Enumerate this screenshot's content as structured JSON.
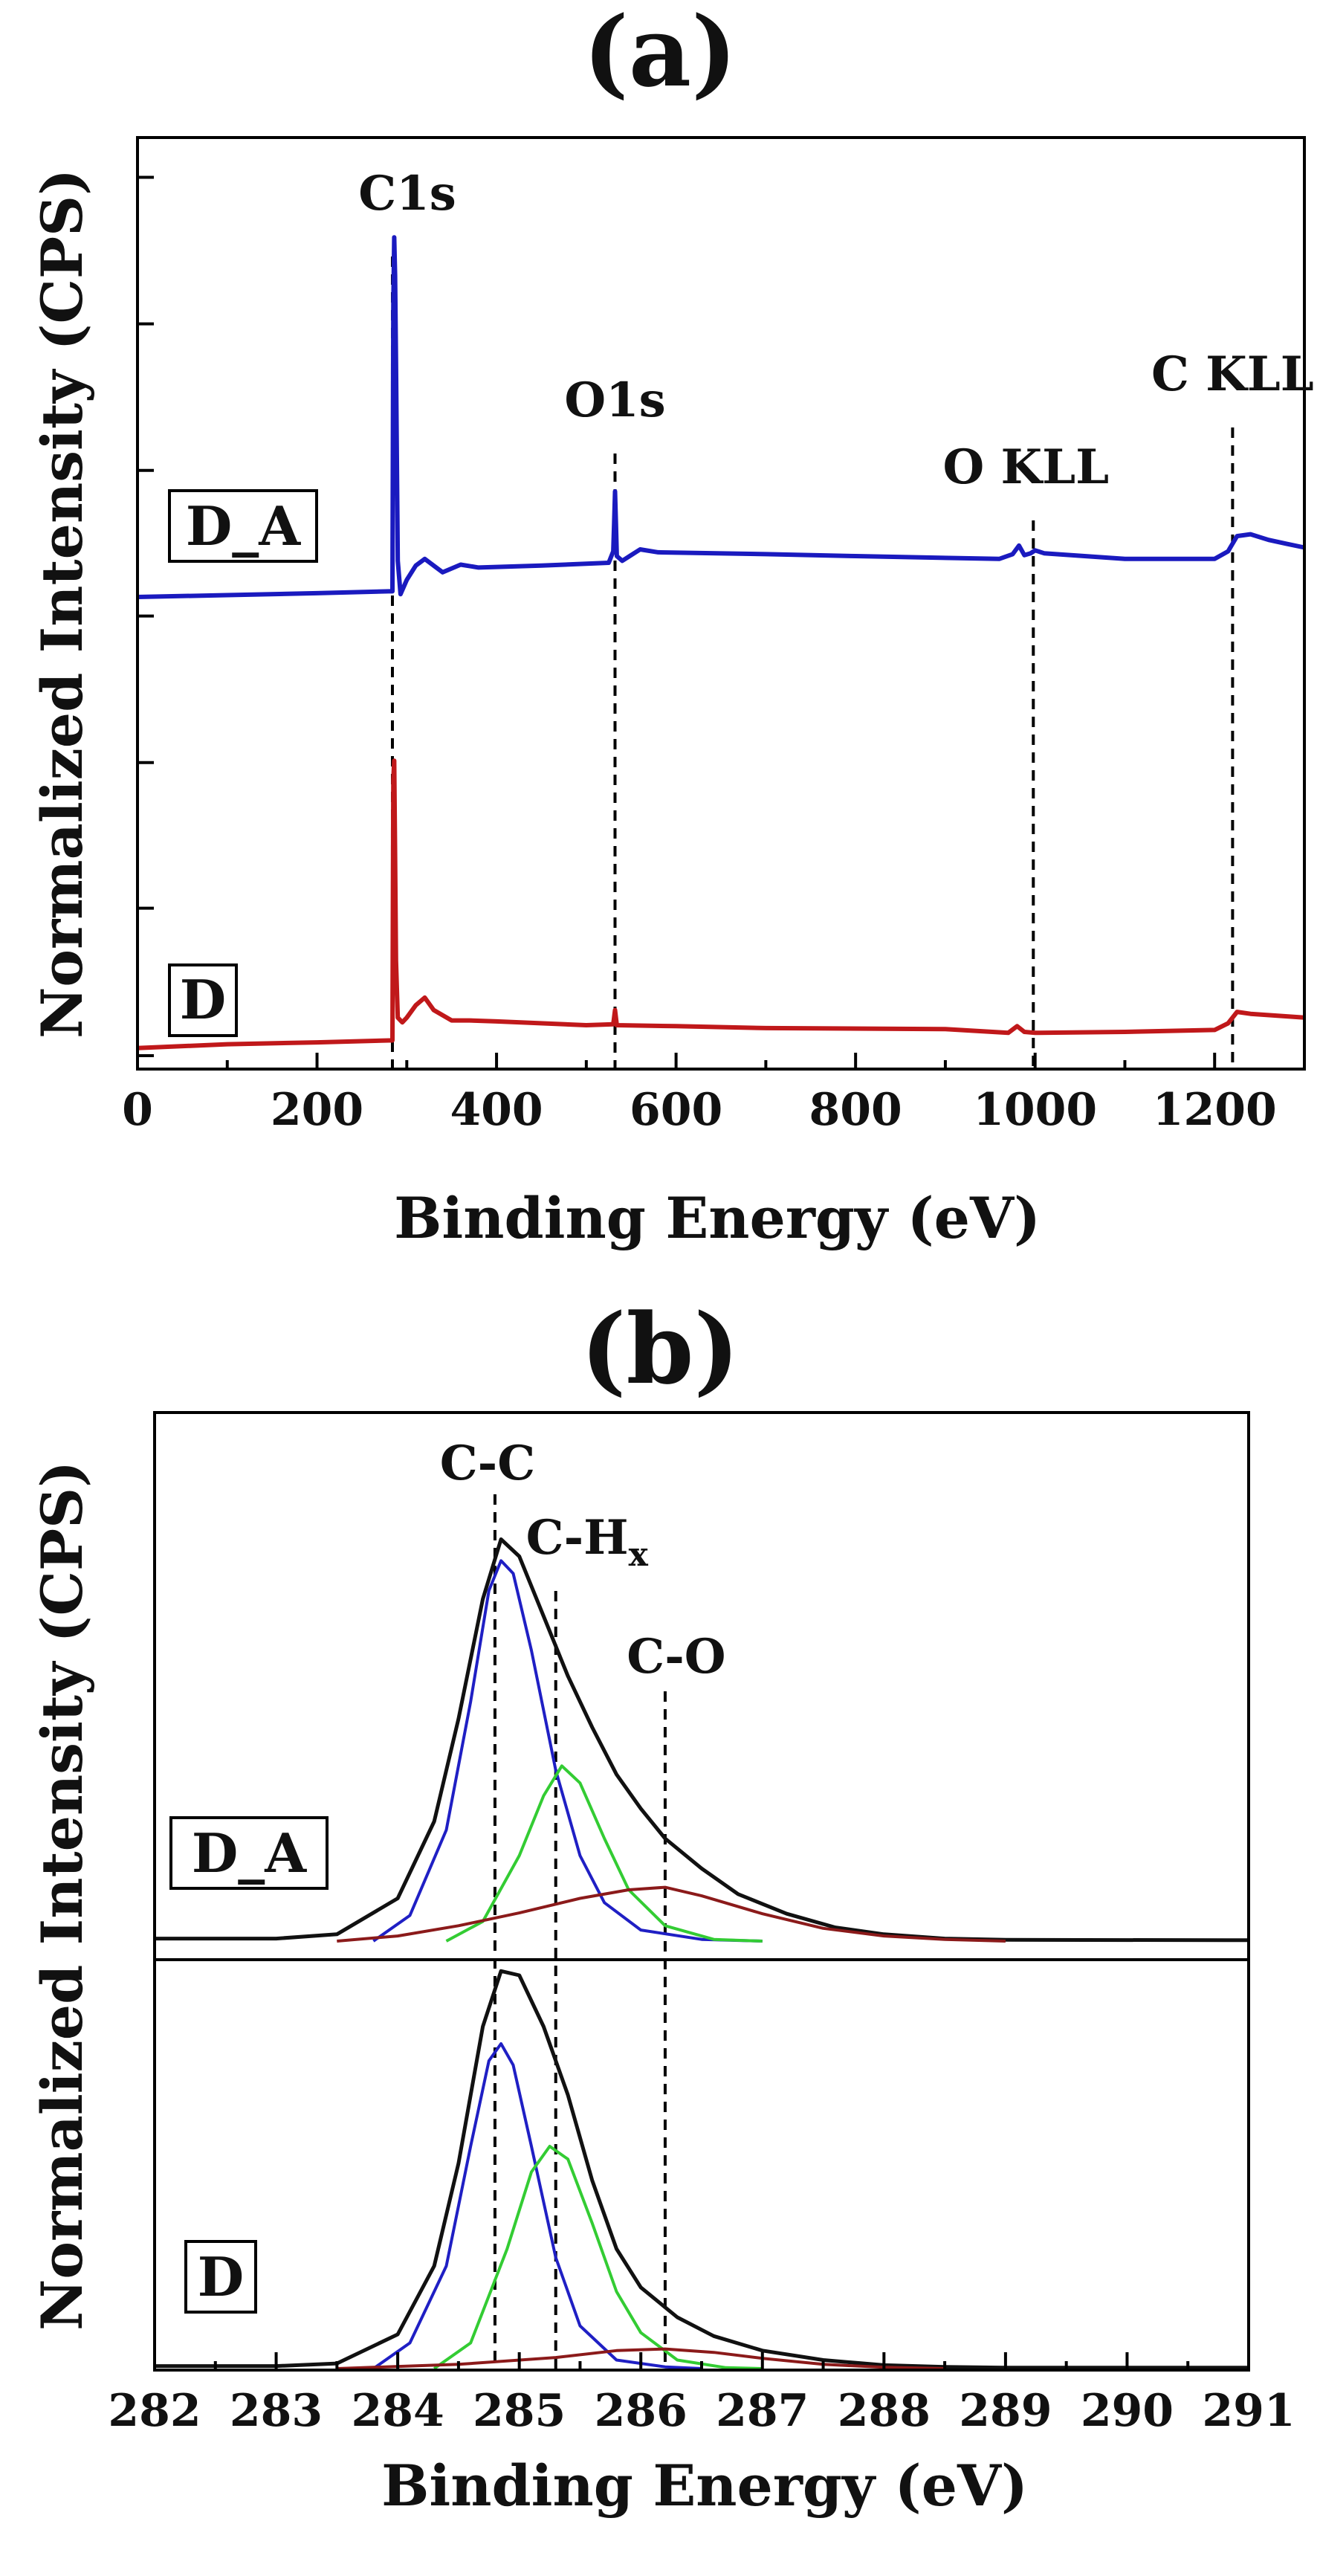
{
  "chart_data": [
    {
      "panel_label": "(a)",
      "type": "line",
      "title": "(a)",
      "xlabel": "Binding Energy (eV)",
      "ylabel": "Normalized Intensity (CPS)",
      "xlim": [
        0,
        1300
      ],
      "ylim": [
        0,
        100
      ],
      "x_ticks": [
        0,
        200,
        400,
        600,
        800,
        1000,
        1200
      ],
      "x_tick_labels": [
        "0",
        "200",
        "400",
        "600",
        "800",
        "1000",
        "1200"
      ],
      "y_ticks": [
        0,
        15.5,
        30.8,
        46.2,
        61.5,
        76.9,
        92.3
      ],
      "y_tick_labels_shown": false,
      "peak_markers": [
        {
          "label": "C1s",
          "x": 284
        },
        {
          "label": "O1s",
          "x": 532
        },
        {
          "label": "O KLL",
          "x": 998
        },
        {
          "label": "C KLL",
          "x": 1220
        }
      ],
      "series": [
        {
          "name": "D_A",
          "color": "#1a1abf",
          "points": [
            [
              0,
              48.2
            ],
            [
              100,
              48.4
            ],
            [
              200,
              48.6
            ],
            [
              280,
              48.8
            ],
            [
              284,
              48.8
            ],
            [
              285,
              79
            ],
            [
              286,
              86
            ],
            [
              287,
              82
            ],
            [
              288,
              73
            ],
            [
              290,
              52
            ],
            [
              293,
              48.5
            ],
            [
              300,
              50
            ],
            [
              310,
              51.5
            ],
            [
              320,
              52.2
            ],
            [
              330,
              51.5
            ],
            [
              340,
              50.8
            ],
            [
              360,
              51.6
            ],
            [
              380,
              51.3
            ],
            [
              450,
              51.5
            ],
            [
              525,
              51.8
            ],
            [
              530,
              53
            ],
            [
              531,
              56
            ],
            [
              532,
              59.3
            ],
            [
              533,
              56
            ],
            [
              534,
              52.5
            ],
            [
              540,
              52
            ],
            [
              550,
              52.6
            ],
            [
              560,
              53.2
            ],
            [
              580,
              52.9
            ],
            [
              700,
              52.7
            ],
            [
              800,
              52.5
            ],
            [
              960,
              52.2
            ],
            [
              975,
              52.7
            ],
            [
              982,
              53.6
            ],
            [
              988,
              52.6
            ],
            [
              995,
              52.8
            ],
            [
              1000,
              53.1
            ],
            [
              1010,
              52.8
            ],
            [
              1100,
              52.2
            ],
            [
              1200,
              52.2
            ],
            [
              1215,
              53
            ],
            [
              1225,
              54.6
            ],
            [
              1240,
              54.8
            ],
            [
              1260,
              54.2
            ],
            [
              1280,
              53.8
            ],
            [
              1300,
              53.4
            ]
          ]
        },
        {
          "name": "D",
          "color": "#c0181a",
          "points": [
            [
              0,
              0.8
            ],
            [
              100,
              1.2
            ],
            [
              200,
              1.4
            ],
            [
              280,
              1.6
            ],
            [
              284,
              1.6
            ],
            [
              285,
              29
            ],
            [
              286,
              31
            ],
            [
              287,
              21
            ],
            [
              288,
              10
            ],
            [
              290,
              4
            ],
            [
              295,
              3.5
            ],
            [
              300,
              4
            ],
            [
              310,
              5.3
            ],
            [
              320,
              6.1
            ],
            [
              330,
              4.8
            ],
            [
              350,
              3.7
            ],
            [
              370,
              3.7
            ],
            [
              400,
              3.6
            ],
            [
              500,
              3.2
            ],
            [
              530,
              3.3
            ],
            [
              532,
              4.8
            ],
            [
              534,
              3.2
            ],
            [
              600,
              3.1
            ],
            [
              700,
              2.9
            ],
            [
              900,
              2.8
            ],
            [
              970,
              2.4
            ],
            [
              980,
              3.1
            ],
            [
              988,
              2.5
            ],
            [
              1000,
              2.4
            ],
            [
              1100,
              2.5
            ],
            [
              1200,
              2.7
            ],
            [
              1215,
              3.4
            ],
            [
              1225,
              4.6
            ],
            [
              1240,
              4.4
            ],
            [
              1270,
              4.2
            ],
            [
              1300,
              4
            ]
          ]
        }
      ],
      "sample_labels": [
        "D_A",
        "D"
      ]
    },
    {
      "panel_label": "(b)",
      "type": "line",
      "title": "(b)",
      "xlabel": "Binding Energy (eV)",
      "ylabel": "Normalized Intensity (CPS)",
      "xlim": [
        282,
        291
      ],
      "ylim": [
        0,
        100
      ],
      "x_ticks": [
        282,
        283,
        284,
        285,
        286,
        287,
        288,
        289,
        290,
        291
      ],
      "x_tick_labels": [
        "282",
        "283",
        "284",
        "285",
        "286",
        "287",
        "288",
        "289",
        "290",
        "291"
      ],
      "y_tick_labels_shown": false,
      "peak_markers": [
        {
          "label": "C-C",
          "x": 284.8
        },
        {
          "label": "C-H",
          "subscript": "x",
          "x": 285.3
        },
        {
          "label": "C-O",
          "x": 286.2
        }
      ],
      "stacks": [
        {
          "name": "D_A",
          "baseline": 50,
          "scale": 50,
          "components": [
            {
              "name": "envelope",
              "color": "#111111",
              "stroke_width": 5,
              "points": [
                [
                  282,
                  0.3
                ],
                [
                  283,
                  0.3
                ],
                [
                  283.5,
                  0.8
                ],
                [
                  284,
                  5
                ],
                [
                  284.3,
                  14
                ],
                [
                  284.5,
                  26
                ],
                [
                  284.7,
                  40
                ],
                [
                  284.85,
                  47
                ],
                [
                  285,
                  45
                ],
                [
                  285.2,
                  38
                ],
                [
                  285.4,
                  31
                ],
                [
                  285.6,
                  25
                ],
                [
                  285.8,
                  19.5
                ],
                [
                  286,
                  15.5
                ],
                [
                  286.2,
                  12
                ],
                [
                  286.5,
                  8.5
                ],
                [
                  286.8,
                  5.5
                ],
                [
                  287.2,
                  3.2
                ],
                [
                  287.6,
                  1.6
                ],
                [
                  288,
                  0.8
                ],
                [
                  288.5,
                  0.3
                ],
                [
                  289,
                  0.15
                ],
                [
                  291,
                  0.1
                ]
              ]
            },
            {
              "name": "C-C fit",
              "color": "#1f1fc4",
              "stroke_width": 4,
              "points": [
                [
                  283.8,
                  0
                ],
                [
                  284.1,
                  3
                ],
                [
                  284.4,
                  13
                ],
                [
                  284.6,
                  28
                ],
                [
                  284.75,
                  41
                ],
                [
                  284.85,
                  44.5
                ],
                [
                  284.95,
                  43
                ],
                [
                  285.1,
                  34
                ],
                [
                  285.3,
                  20
                ],
                [
                  285.5,
                  10
                ],
                [
                  285.7,
                  4.5
                ],
                [
                  286,
                  1.3
                ],
                [
                  286.5,
                  0.2
                ],
                [
                  287,
                  0
                ]
              ]
            },
            {
              "name": "C-H_x fit",
              "color": "#33cc33",
              "stroke_width": 4,
              "points": [
                [
                  284.4,
                  0
                ],
                [
                  284.7,
                  2.3
                ],
                [
                  285,
                  10
                ],
                [
                  285.2,
                  17
                ],
                [
                  285.35,
                  20.5
                ],
                [
                  285.5,
                  18.5
                ],
                [
                  285.7,
                  12
                ],
                [
                  285.9,
                  6
                ],
                [
                  286.2,
                  1.8
                ],
                [
                  286.6,
                  0.2
                ],
                [
                  287,
                  0
                ]
              ]
            },
            {
              "name": "C-O fit",
              "color": "#8b1a1a",
              "stroke_width": 4,
              "points": [
                [
                  283.5,
                  0
                ],
                [
                  284,
                  0.6
                ],
                [
                  284.5,
                  1.8
                ],
                [
                  285,
                  3.3
                ],
                [
                  285.5,
                  5
                ],
                [
                  285.9,
                  6
                ],
                [
                  286.2,
                  6.3
                ],
                [
                  286.5,
                  5.3
                ],
                [
                  287,
                  3.2
                ],
                [
                  287.5,
                  1.5
                ],
                [
                  288,
                  0.6
                ],
                [
                  288.5,
                  0.2
                ],
                [
                  289,
                  0
                ]
              ]
            }
          ]
        },
        {
          "name": "D",
          "baseline": 0,
          "scale": 50,
          "components": [
            {
              "name": "envelope",
              "color": "#111111",
              "stroke_width": 5,
              "points": [
                [
                  282,
                  0.3
                ],
                [
                  283,
                  0.3
                ],
                [
                  283.5,
                  0.6
                ],
                [
                  284,
                  4
                ],
                [
                  284.3,
                  12
                ],
                [
                  284.5,
                  24
                ],
                [
                  284.7,
                  40
                ],
                [
                  284.85,
                  46.5
                ],
                [
                  285,
                  46
                ],
                [
                  285.2,
                  40
                ],
                [
                  285.4,
                  32
                ],
                [
                  285.6,
                  22
                ],
                [
                  285.8,
                  14
                ],
                [
                  286,
                  9.5
                ],
                [
                  286.3,
                  6
                ],
                [
                  286.6,
                  3.8
                ],
                [
                  287,
                  2.1
                ],
                [
                  287.5,
                  1
                ],
                [
                  288,
                  0.4
                ],
                [
                  288.5,
                  0.2
                ],
                [
                  289,
                  0.1
                ],
                [
                  291,
                  0.1
                ]
              ]
            },
            {
              "name": "C-C fit",
              "color": "#1f1fc4",
              "stroke_width": 4,
              "points": [
                [
                  283.8,
                  0
                ],
                [
                  284.1,
                  3
                ],
                [
                  284.4,
                  12
                ],
                [
                  284.6,
                  26
                ],
                [
                  284.75,
                  36
                ],
                [
                  284.85,
                  38
                ],
                [
                  284.95,
                  35.5
                ],
                [
                  285.1,
                  26
                ],
                [
                  285.3,
                  13
                ],
                [
                  285.5,
                  5
                ],
                [
                  285.8,
                  1
                ],
                [
                  286.2,
                  0.2
                ],
                [
                  286.5,
                  0
                ]
              ]
            },
            {
              "name": "C-H_x fit",
              "color": "#33cc33",
              "stroke_width": 4,
              "points": [
                [
                  284.3,
                  0
                ],
                [
                  284.6,
                  3
                ],
                [
                  284.9,
                  14
                ],
                [
                  285.1,
                  23
                ],
                [
                  285.25,
                  26
                ],
                [
                  285.4,
                  24.5
                ],
                [
                  285.6,
                  17
                ],
                [
                  285.8,
                  9
                ],
                [
                  286,
                  4.2
                ],
                [
                  286.3,
                  1
                ],
                [
                  286.7,
                  0.1
                ],
                [
                  287,
                  0
                ]
              ]
            },
            {
              "name": "C-O fit",
              "color": "#8b1a1a",
              "stroke_width": 4,
              "points": [
                [
                  283.5,
                  0
                ],
                [
                  284.5,
                  0.5
                ],
                [
                  285.3,
                  1.3
                ],
                [
                  285.8,
                  2.1
                ],
                [
                  286.2,
                  2.3
                ],
                [
                  286.6,
                  1.9
                ],
                [
                  287,
                  1.2
                ],
                [
                  287.5,
                  0.5
                ],
                [
                  288,
                  0.15
                ],
                [
                  288.5,
                  0
                ]
              ]
            }
          ]
        }
      ],
      "sample_labels": [
        "D_A",
        "D"
      ]
    }
  ]
}
